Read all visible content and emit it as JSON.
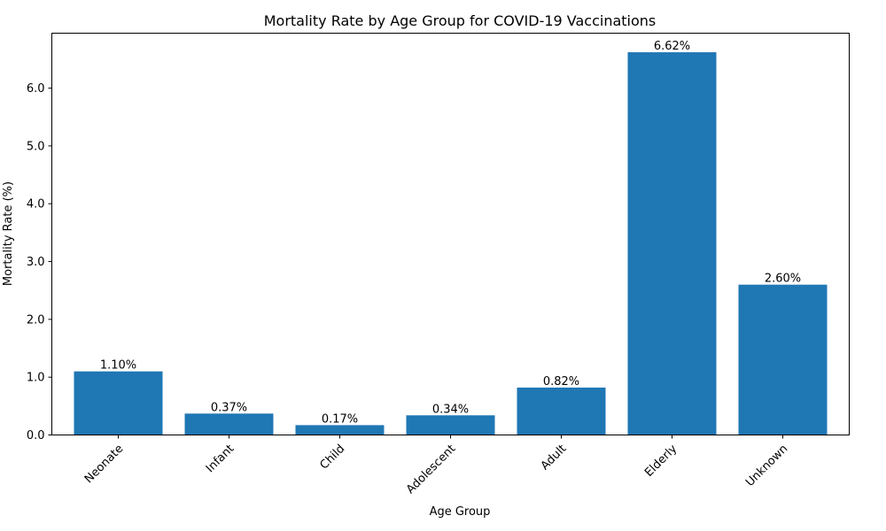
{
  "chart_data": {
    "type": "bar",
    "title": "Mortality Rate by Age Group for COVID-19 Vaccinations",
    "xlabel": "Age Group",
    "ylabel": "Mortality Rate (%)",
    "categories": [
      "Neonate",
      "Infant",
      "Child",
      "Adolescent",
      "Adult",
      "Elderly",
      "Unknown"
    ],
    "values": [
      1.1,
      0.37,
      0.17,
      0.34,
      0.82,
      6.62,
      2.6
    ],
    "data_labels": [
      "1.10%",
      "0.37%",
      "0.17%",
      "0.34%",
      "0.82%",
      "6.62%",
      "2.60%"
    ],
    "ylim": [
      0,
      6.95
    ],
    "yticks": [
      0.0,
      1.0,
      2.0,
      3.0,
      4.0,
      5.0,
      6.0
    ],
    "ytick_labels": [
      "0.0",
      "1.0",
      "2.0",
      "3.0",
      "4.0",
      "5.0",
      "6.0"
    ],
    "bar_color": "#1f77b4",
    "grid": false,
    "legend": "none"
  }
}
